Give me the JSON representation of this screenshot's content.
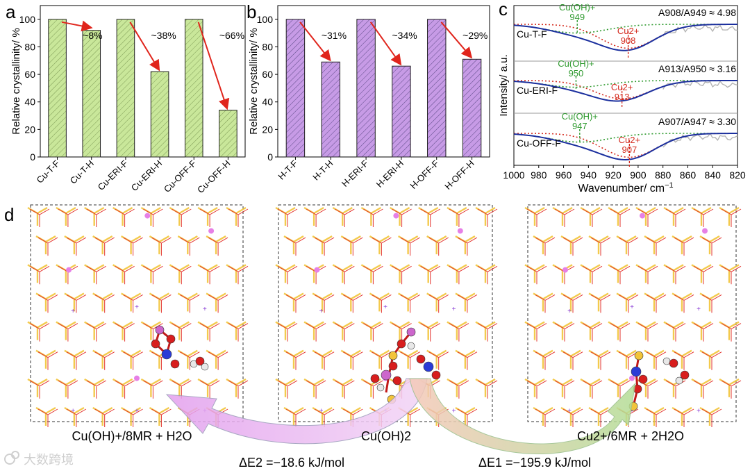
{
  "panel_labels": {
    "a": "a",
    "b": "b",
    "c": "c",
    "d": "d"
  },
  "colors": {
    "bars_a": "#c9e79a",
    "bars_b": "#c79be6",
    "arrow": "#e0251c",
    "fit_blue": "#1b2f9e",
    "exp_gray": "#b4b4b4",
    "peak_red": "#d42b1e",
    "peak_green": "#2f9a2f",
    "framework_red": "#e3342f",
    "framework_yellow": "#f2c43a",
    "framework_pink": "#e680e6",
    "arrow_pink": "#e8a8f0",
    "arrow_green": "#b9dfa2"
  },
  "chart_data": [
    {
      "id": "a",
      "type": "bar",
      "categories": [
        "Cu-T-F",
        "Cu-T-H",
        "Cu-ERI-F",
        "Cu-ERI-H",
        "Cu-OFF-F",
        "Cu-OFF-H"
      ],
      "values": [
        100,
        92,
        100,
        62,
        100,
        34
      ],
      "ylabel": "Relative crystallinity/ %",
      "ylim": [
        0,
        110
      ],
      "yticks": [
        0,
        20,
        40,
        60,
        80,
        100
      ],
      "annotations": [
        {
          "from": 0,
          "to": 1,
          "text": "~8%"
        },
        {
          "from": 2,
          "to": 3,
          "text": "~38%"
        },
        {
          "from": 4,
          "to": 5,
          "text": "~66%"
        }
      ]
    },
    {
      "id": "b",
      "type": "bar",
      "categories": [
        "H-T-F",
        "H-T-H",
        "H-ERI-F",
        "H-ERI-H",
        "H-OFF-F",
        "H-OFF-H"
      ],
      "values": [
        100,
        69,
        100,
        66,
        100,
        71
      ],
      "ylabel": "Relative crystallinity/ %",
      "ylim": [
        0,
        110
      ],
      "yticks": [
        0,
        20,
        40,
        60,
        80,
        100
      ],
      "annotations": [
        {
          "from": 0,
          "to": 1,
          "text": "~31%"
        },
        {
          "from": 2,
          "to": 3,
          "text": "~34%"
        },
        {
          "from": 4,
          "to": 5,
          "text": "~29%"
        }
      ]
    },
    {
      "id": "c",
      "type": "line",
      "xlabel": "Wavenumber/ cm",
      "xlabel_sup": "−1",
      "ylabel": "Intensity/ a.u.",
      "xlim": [
        1000,
        820
      ],
      "xticks": [
        1000,
        980,
        960,
        940,
        920,
        900,
        880,
        860,
        840,
        820
      ],
      "series": [
        {
          "name": "Cu-T-F",
          "cu2_peak": 908,
          "cuoh_peak": 949,
          "ratio": "A908/A949 ≈ 4.98",
          "cu2_label": "Cu2+",
          "cuoh_label": "Cu(OH)+"
        },
        {
          "name": "Cu-ERI-F",
          "cu2_peak": 913,
          "cuoh_peak": 950,
          "ratio": "A913/A950 ≈ 3.16",
          "cu2_label": "Cu2+",
          "cuoh_label": "Cu(OH)+"
        },
        {
          "name": "Cu-OFF-F",
          "cu2_peak": 907,
          "cuoh_peak": 947,
          "ratio": "A907/A947 ≈ 3.30",
          "cu2_label": "Cu2+",
          "cuoh_label": "Cu(OH)+"
        }
      ]
    }
  ],
  "panel_d": {
    "structures": [
      {
        "label": "Cu(OH)+/8MR + H2O"
      },
      {
        "label": "Cu(OH)2"
      },
      {
        "label": "Cu2+/6MR + 2H2O"
      }
    ],
    "energies": [
      {
        "text": "ΔE2 =−18.6 kJ/mol"
      },
      {
        "text": "ΔE1 =−195.9 kJ/mol"
      }
    ]
  },
  "watermark": "大数跨境"
}
